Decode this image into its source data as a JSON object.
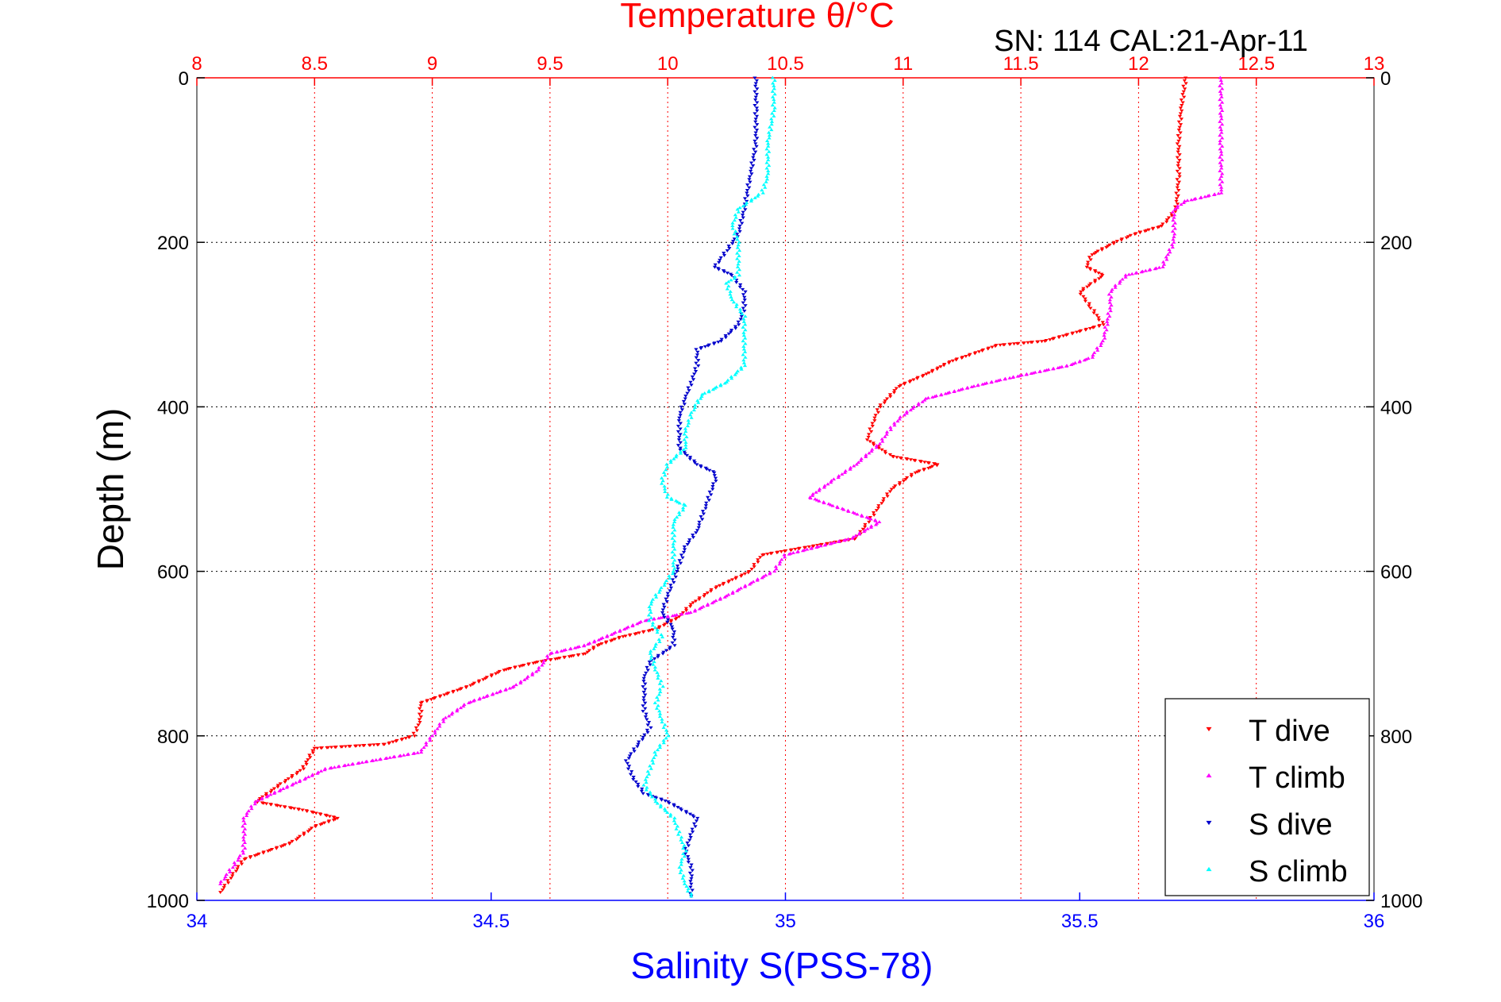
{
  "chart_data": {
    "type": "scatter",
    "title": "Temperature θ/°C",
    "subtitle": "SN: 114  CAL:21-Apr-11",
    "xlabel_bottom": "Salinity S(PSS-78)",
    "xlabel_top": "Temperature θ/°C",
    "ylabel": "Depth (m)",
    "y_reversed": true,
    "ylim": [
      0,
      1000
    ],
    "ticks_y": [
      "0",
      "200",
      "400",
      "600",
      "800",
      "1000"
    ],
    "xlim_bottom": [
      34,
      36
    ],
    "ticks_bottom": [
      "34",
      "34.5",
      "35",
      "35.5",
      "36"
    ],
    "xlim_top": [
      8,
      13
    ],
    "ticks_top": [
      "8",
      "8.5",
      "9",
      "9.5",
      "10",
      "10.5",
      "11",
      "11.5",
      "12",
      "12.5",
      "13"
    ],
    "grid": true,
    "legend_position": "bottom-right",
    "series": [
      {
        "name": "T dive",
        "axis": "top",
        "color": "#ff0000",
        "marker": "triangle-down",
        "points": [
          [
            12.2,
            0
          ],
          [
            12.18,
            40
          ],
          [
            12.17,
            80
          ],
          [
            12.17,
            120
          ],
          [
            12.16,
            160
          ],
          [
            12.1,
            180
          ],
          [
            11.98,
            190
          ],
          [
            11.9,
            200
          ],
          [
            11.8,
            215
          ],
          [
            11.78,
            230
          ],
          [
            11.85,
            240
          ],
          [
            11.75,
            260
          ],
          [
            11.8,
            280
          ],
          [
            11.85,
            300
          ],
          [
            11.6,
            320
          ],
          [
            11.4,
            325
          ],
          [
            11.3,
            335
          ],
          [
            11.2,
            345
          ],
          [
            11.1,
            360
          ],
          [
            10.98,
            375
          ],
          [
            10.95,
            385
          ],
          [
            10.9,
            400
          ],
          [
            10.87,
            420
          ],
          [
            10.85,
            440
          ],
          [
            10.95,
            460
          ],
          [
            11.15,
            470
          ],
          [
            11.05,
            480
          ],
          [
            10.95,
            500
          ],
          [
            10.9,
            520
          ],
          [
            10.85,
            540
          ],
          [
            10.8,
            560
          ],
          [
            10.6,
            570
          ],
          [
            10.4,
            580
          ],
          [
            10.35,
            600
          ],
          [
            10.2,
            620
          ],
          [
            10.1,
            640
          ],
          [
            10.05,
            655
          ],
          [
            9.95,
            670
          ],
          [
            9.8,
            680
          ],
          [
            9.7,
            690
          ],
          [
            9.65,
            700
          ],
          [
            9.45,
            710
          ],
          [
            9.3,
            720
          ],
          [
            9.15,
            740
          ],
          [
            9.05,
            750
          ],
          [
            8.95,
            760
          ],
          [
            8.95,
            780
          ],
          [
            8.92,
            800
          ],
          [
            8.8,
            810
          ],
          [
            8.5,
            815
          ],
          [
            8.45,
            840
          ],
          [
            8.35,
            860
          ],
          [
            8.25,
            880
          ],
          [
            8.45,
            890
          ],
          [
            8.6,
            900
          ],
          [
            8.5,
            910
          ],
          [
            8.4,
            930
          ],
          [
            8.2,
            950
          ],
          [
            8.15,
            970
          ],
          [
            8.1,
            990
          ]
        ]
      },
      {
        "name": "T climb",
        "axis": "top",
        "color": "#ff00ff",
        "marker": "triangle-up",
        "points": [
          [
            12.35,
            0
          ],
          [
            12.35,
            40
          ],
          [
            12.35,
            80
          ],
          [
            12.35,
            120
          ],
          [
            12.35,
            140
          ],
          [
            12.2,
            150
          ],
          [
            12.15,
            160
          ],
          [
            12.15,
            180
          ],
          [
            12.15,
            200
          ],
          [
            12.1,
            230
          ],
          [
            11.95,
            240
          ],
          [
            11.88,
            260
          ],
          [
            11.88,
            280
          ],
          [
            11.85,
            320
          ],
          [
            11.8,
            340
          ],
          [
            11.7,
            350
          ],
          [
            11.45,
            365
          ],
          [
            11.3,
            375
          ],
          [
            11.1,
            390
          ],
          [
            11.0,
            410
          ],
          [
            10.95,
            425
          ],
          [
            10.9,
            445
          ],
          [
            10.8,
            470
          ],
          [
            10.7,
            490
          ],
          [
            10.6,
            510
          ],
          [
            10.75,
            525
          ],
          [
            10.9,
            540
          ],
          [
            10.78,
            560
          ],
          [
            10.5,
            580
          ],
          [
            10.45,
            600
          ],
          [
            10.25,
            630
          ],
          [
            10.1,
            650
          ],
          [
            9.9,
            660
          ],
          [
            9.65,
            690
          ],
          [
            9.5,
            700
          ],
          [
            9.45,
            720
          ],
          [
            9.35,
            740
          ],
          [
            9.15,
            760
          ],
          [
            9.05,
            780
          ],
          [
            9.0,
            800
          ],
          [
            8.95,
            820
          ],
          [
            8.55,
            840
          ],
          [
            8.4,
            860
          ],
          [
            8.25,
            880
          ],
          [
            8.2,
            900
          ],
          [
            8.2,
            920
          ],
          [
            8.2,
            940
          ],
          [
            8.15,
            960
          ],
          [
            8.1,
            980
          ]
        ]
      },
      {
        "name": "S dive",
        "axis": "bottom",
        "color": "#0000cc",
        "marker": "triangle-down",
        "points": [
          [
            34.95,
            0
          ],
          [
            34.95,
            40
          ],
          [
            34.95,
            80
          ],
          [
            34.94,
            120
          ],
          [
            34.93,
            160
          ],
          [
            34.92,
            190
          ],
          [
            34.9,
            210
          ],
          [
            34.88,
            230
          ],
          [
            34.91,
            240
          ],
          [
            34.93,
            260
          ],
          [
            34.93,
            280
          ],
          [
            34.92,
            300
          ],
          [
            34.89,
            320
          ],
          [
            34.85,
            330
          ],
          [
            34.85,
            350
          ],
          [
            34.84,
            370
          ],
          [
            34.83,
            390
          ],
          [
            34.82,
            410
          ],
          [
            34.82,
            430
          ],
          [
            34.82,
            450
          ],
          [
            34.85,
            470
          ],
          [
            34.88,
            480
          ],
          [
            34.88,
            490
          ],
          [
            34.87,
            510
          ],
          [
            34.86,
            530
          ],
          [
            34.85,
            550
          ],
          [
            34.83,
            570
          ],
          [
            34.82,
            590
          ],
          [
            34.81,
            610
          ],
          [
            34.8,
            630
          ],
          [
            34.79,
            650
          ],
          [
            34.81,
            670
          ],
          [
            34.81,
            690
          ],
          [
            34.77,
            710
          ],
          [
            34.76,
            730
          ],
          [
            34.76,
            750
          ],
          [
            34.76,
            770
          ],
          [
            34.77,
            790
          ],
          [
            34.75,
            810
          ],
          [
            34.73,
            830
          ],
          [
            34.74,
            850
          ],
          [
            34.76,
            870
          ],
          [
            34.8,
            880
          ],
          [
            34.85,
            900
          ],
          [
            34.84,
            920
          ],
          [
            34.83,
            940
          ],
          [
            34.84,
            960
          ],
          [
            34.84,
            980
          ],
          [
            34.84,
            995
          ]
        ]
      },
      {
        "name": "S climb",
        "axis": "bottom",
        "color": "#00ffff",
        "marker": "triangle-up",
        "points": [
          [
            34.98,
            0
          ],
          [
            34.98,
            40
          ],
          [
            34.97,
            80
          ],
          [
            34.97,
            120
          ],
          [
            34.96,
            140
          ],
          [
            34.92,
            160
          ],
          [
            34.91,
            180
          ],
          [
            34.92,
            200
          ],
          [
            34.92,
            220
          ],
          [
            34.92,
            240
          ],
          [
            34.9,
            250
          ],
          [
            34.91,
            270
          ],
          [
            34.93,
            290
          ],
          [
            34.93,
            320
          ],
          [
            34.93,
            350
          ],
          [
            34.9,
            370
          ],
          [
            34.86,
            385
          ],
          [
            34.85,
            395
          ],
          [
            34.84,
            410
          ],
          [
            34.83,
            430
          ],
          [
            34.83,
            450
          ],
          [
            34.8,
            470
          ],
          [
            34.79,
            490
          ],
          [
            34.8,
            510
          ],
          [
            34.83,
            520
          ],
          [
            34.81,
            540
          ],
          [
            34.81,
            560
          ],
          [
            34.81,
            580
          ],
          [
            34.81,
            600
          ],
          [
            34.79,
            620
          ],
          [
            34.77,
            640
          ],
          [
            34.77,
            660
          ],
          [
            34.79,
            680
          ],
          [
            34.77,
            700
          ],
          [
            34.78,
            720
          ],
          [
            34.79,
            740
          ],
          [
            34.78,
            760
          ],
          [
            34.79,
            780
          ],
          [
            34.8,
            800
          ],
          [
            34.78,
            820
          ],
          [
            34.77,
            840
          ],
          [
            34.76,
            860
          ],
          [
            34.78,
            880
          ],
          [
            34.81,
            900
          ],
          [
            34.82,
            920
          ],
          [
            34.83,
            940
          ],
          [
            34.82,
            960
          ],
          [
            34.83,
            980
          ],
          [
            34.84,
            995
          ]
        ]
      }
    ]
  }
}
